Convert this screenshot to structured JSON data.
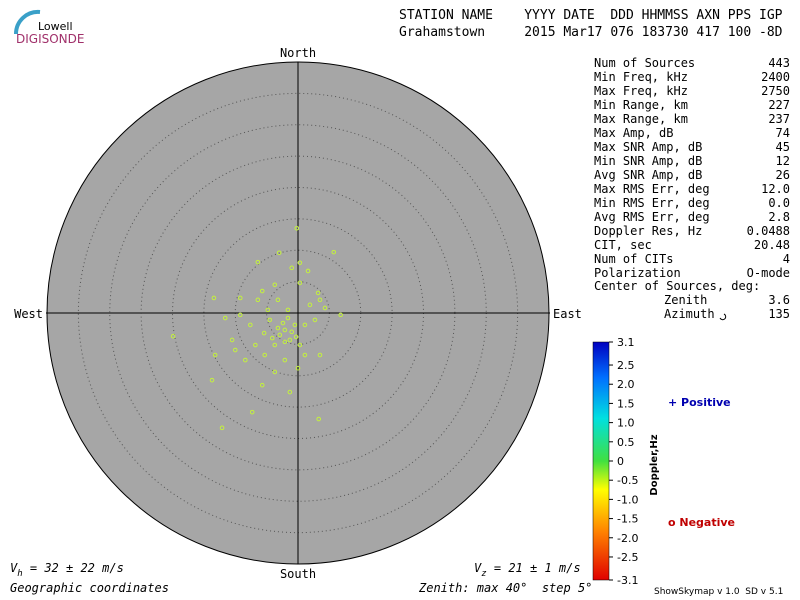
{
  "logo": {
    "top": "Lowell",
    "bottom": "DIGISONDE"
  },
  "header": {
    "labels": "STATION NAME    YYYY DATE  DDD HHMMSS AXN PPS IGP",
    "values": "Grahamstown     2015 Mar17 076 183730 417 100 -8D"
  },
  "stats": [
    [
      "Num of Sources",
      "443"
    ],
    [
      "Min Freq, kHz",
      "2400"
    ],
    [
      "Max Freq, kHz",
      "2750"
    ],
    [
      "Min Range, km",
      "227"
    ],
    [
      "Max Range, km",
      "237"
    ],
    [
      "Max Amp, dB",
      "74"
    ],
    [
      "Max SNR Amp, dB",
      "45"
    ],
    [
      "Min SNR Amp, dB",
      "12"
    ],
    [
      "Avg SNR Amp, dB",
      "26"
    ],
    [
      "Max RMS Err, deg",
      "12.0"
    ],
    [
      "Min RMS Err, deg",
      "0.0"
    ],
    [
      "Avg RMS Err, deg",
      "2.8"
    ],
    [
      "Doppler Res, Hz",
      "0.0488"
    ],
    [
      "CIT, sec",
      "20.48"
    ],
    [
      "Num of CITs",
      "4"
    ],
    [
      "Polarization",
      "O-mode"
    ]
  ],
  "center": {
    "title": "Center of Sources, deg:",
    "zenith_label": "Zenith",
    "zenith": "3.6",
    "azimuth_label": "Azimuth",
    "azimuth": "135"
  },
  "chart_data": {
    "type": "skymap",
    "directions": {
      "north": "North",
      "south": "South",
      "east": "East",
      "west": "West"
    },
    "color": "#c4f23c",
    "rlim": [
      0,
      40
    ],
    "rticks": [
      5,
      10,
      15,
      20,
      25,
      30,
      35
    ],
    "x": [
      -0.2,
      -3.0,
      -6.4,
      -1.0,
      1.6,
      5.7,
      -13.4,
      -19.9,
      -9.2,
      -5.7,
      -3.7,
      0.3,
      3.2,
      6.8,
      4.3,
      1.9,
      -1.6,
      -4.5,
      -7.6,
      -10.5,
      -13.2,
      -13.7,
      -12.1,
      -7.3,
      -5.7,
      -3.7,
      -1.3,
      3.3,
      -2.1,
      -2.9,
      -1.3,
      -3.7,
      -0.5,
      -2.4,
      0.3,
      1.1,
      3.5,
      -8.4,
      -10.0,
      -6.8,
      -5.3,
      -2.1,
      0,
      -6.4,
      0.3,
      3.5,
      -3.2,
      -4.8,
      -9.2,
      -11.6,
      1.1,
      2.7,
      -2.1,
      -4.1,
      -1.0,
      -3.2,
      -1.6,
      -5.4,
      -0.3
    ],
    "y": [
      13.5,
      9.6,
      8.1,
      7.2,
      6.7,
      9.7,
      2.4,
      -3.7,
      2.4,
      3.5,
      4.5,
      4.8,
      3.2,
      -0.3,
      0.8,
      1.3,
      0.5,
      -1.1,
      -1.9,
      -4.3,
      -6.7,
      -10.7,
      -18.3,
      -15.8,
      -11.5,
      -9.4,
      -12.6,
      -16.9,
      -2.7,
      -3.5,
      -4.3,
      -5.1,
      -1.9,
      -1.6,
      -5.1,
      -6.7,
      -6.7,
      -7.5,
      -5.9,
      -5.1,
      -6.7,
      -7.5,
      -8.8,
      2.1,
      8.0,
      2.1,
      2.1,
      0.5,
      -0.3,
      -0.8,
      -1.9,
      -1.1,
      -4.6,
      -4.0,
      -3.0,
      -2.4,
      -0.8,
      -3.2,
      -3.8
    ]
  },
  "colorbar": {
    "label": "Doppler,Hz",
    "lim": [
      -3.1,
      3.1
    ],
    "ticks": [
      3.1,
      2.5,
      {
        "value": 2,
        "label": "2.0"
      },
      1.5,
      {
        "value": 1,
        "label": "1.0"
      },
      0.5,
      0,
      -0.5,
      {
        "value": -1,
        "label": "-1.0"
      },
      -1.5,
      {
        "value": -2,
        "label": "-2.0"
      },
      -2.5,
      -3.1
    ],
    "positive": "+ Positive",
    "negative": "o Negative"
  },
  "footer": {
    "vh_v": "V",
    "vh_sub": "h",
    "vh_rest": " = 32 ± 22 m/s",
    "vz_v": "V",
    "vz_sub": "z",
    "vz_rest": " = 21 ± 1 m/s",
    "coords": "Geographic coordinates",
    "zenith": "Zenith: max 40°  step 5°",
    "version": "ShowSkymap v 1.0  SD v 5.1"
  }
}
